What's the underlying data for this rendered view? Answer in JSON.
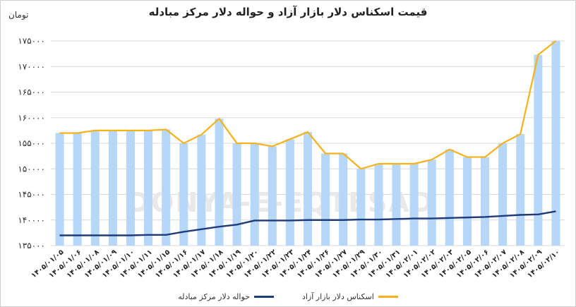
{
  "chart_data": {
    "type": "bar",
    "title": "قیمت اسکناس دلار بازار آزاد و حواله دلار مرکز مبادله",
    "ylabel": "تومان",
    "watermark": "DONYA-E-EQTESAD",
    "ylim": [
      135000,
      175000
    ],
    "yticks": [
      "۱۳۵۰۰۰",
      "۱۴۰۰۰۰",
      "۱۴۵۰۰۰",
      "۱۵۰۰۰۰",
      "۱۵۵۰۰۰",
      "۱۶۰۰۰۰",
      "۱۶۵۰۰۰",
      "۱۷۰۰۰۰",
      "۱۷۵۰۰۰"
    ],
    "ytick_values": [
      135000,
      140000,
      145000,
      150000,
      155000,
      160000,
      165000,
      170000,
      175000
    ],
    "categories": [
      "۱۴۰۵/۰۱/۰۵",
      "۱۴۰۵/۰۱/۰۶",
      "۱۴۰۵/۰۱/۰۸",
      "۱۴۰۵/۰۱/۰۹",
      "۱۴۰۵/۰۱/۱۰",
      "۱۴۰۵/۰۱/۱۱",
      "۱۴۰۵/۰۱/۱۵",
      "۱۴۰۵/۰۱/۱۶",
      "۱۴۰۵/۰۱/۱۷",
      "۱۴۰۵/۰۱/۱۸",
      "۱۴۰۵/۰۱/۱۹",
      "۱۴۰۵/۰۱/۲۰",
      "۱۴۰۵/۰۱/۲۲",
      "۱۴۰۵/۰۱/۲۳",
      "۱۴۰۵/۰۱/۲۴",
      "۱۴۰۵/۰۱/۲۶",
      "۱۴۰۵/۰۱/۲۷",
      "۱۴۰۵/۰۱/۲۹",
      "۱۴۰۵/۰۱/۳۰",
      "۱۴۰۵/۰۱/۳۱",
      "۱۴۰۵/۰۲/۰۱",
      "۱۴۰۵/۰۲/۰۲",
      "۱۴۰۵/۰۲/۰۳",
      "۱۴۰۵/۰۲/۰۵",
      "۱۴۰۵/۰۲/۰۶",
      "۱۴۰۵/۰۲/۰۷",
      "۱۴۰۵/۰۲/۰۸",
      "۱۴۰۵/۰۲/۰۹",
      "۱۴۰۵/۰۲/۱۰"
    ],
    "series": [
      {
        "name": "اسکناس دلار بازار آزاد",
        "color": "#f5b21b",
        "bar_color": "#b6d7f7",
        "values": [
          157000,
          157000,
          157500,
          157500,
          157500,
          157500,
          157700,
          155000,
          156700,
          159800,
          155000,
          155000,
          154400,
          155800,
          157200,
          153000,
          153000,
          150000,
          151000,
          151000,
          151000,
          151800,
          153800,
          152300,
          152300,
          155000,
          156800,
          172300,
          175000
        ]
      },
      {
        "name": "حواله دلار مرکز مبادله",
        "color": "#1f3c7a",
        "values": [
          137000,
          137000,
          137000,
          137000,
          137000,
          137100,
          137100,
          137700,
          138200,
          138700,
          139100,
          139900,
          139900,
          139900,
          140000,
          140000,
          140000,
          140100,
          140100,
          140200,
          140300,
          140300,
          140400,
          140500,
          140600,
          140800,
          141000,
          141100,
          141700
        ]
      }
    ],
    "legend_position": "bottom",
    "grid": true
  }
}
